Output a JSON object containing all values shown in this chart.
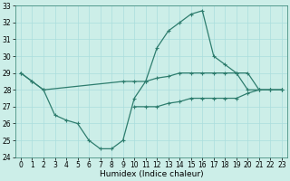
{
  "x": [
    0,
    1,
    2,
    3,
    4,
    5,
    6,
    7,
    8,
    9,
    10,
    11,
    12,
    13,
    14,
    15,
    16,
    17,
    18,
    19,
    20,
    21,
    22,
    23
  ],
  "line1_x": [
    0,
    1,
    2,
    9,
    10,
    11,
    12,
    13,
    14,
    15,
    16,
    17,
    18,
    19,
    20,
    21,
    22,
    23
  ],
  "line1_y": [
    29.0,
    28.5,
    28.0,
    28.5,
    28.5,
    28.5,
    28.7,
    28.8,
    29.0,
    29.0,
    29.0,
    29.0,
    29.0,
    29.0,
    28.0,
    28.0,
    28.0,
    28.0
  ],
  "line2_x": [
    0,
    1,
    2,
    3,
    4,
    5,
    6,
    7,
    8,
    9,
    10,
    11,
    12,
    13,
    14,
    15,
    16,
    17,
    18,
    19,
    20,
    21,
    22,
    23
  ],
  "line2_y": [
    29.0,
    28.5,
    28.0,
    26.5,
    26.2,
    26.0,
    25.0,
    24.5,
    24.5,
    25.0,
    27.5,
    28.5,
    30.5,
    31.5,
    32.0,
    32.5,
    32.7,
    30.0,
    29.5,
    29.0,
    29.0,
    28.0,
    28.0,
    28.0
  ],
  "line3_x": [
    10,
    11,
    12,
    13,
    14,
    15,
    16,
    17,
    18,
    19,
    20,
    21,
    22,
    23
  ],
  "line3_y": [
    27.0,
    27.0,
    27.0,
    27.2,
    27.3,
    27.5,
    27.5,
    27.5,
    27.5,
    27.5,
    27.8,
    28.0,
    28.0,
    28.0
  ],
  "color": "#2e7d6e",
  "bg_color": "#cceee8",
  "grid_color": "#aadddd",
  "xlabel": "Humidex (Indice chaleur)",
  "ylim": [
    24,
    33
  ],
  "xlim": [
    -0.5,
    23.5
  ],
  "yticks": [
    24,
    25,
    26,
    27,
    28,
    29,
    30,
    31,
    32,
    33
  ],
  "xticks": [
    0,
    1,
    2,
    3,
    4,
    5,
    6,
    7,
    8,
    9,
    10,
    11,
    12,
    13,
    14,
    15,
    16,
    17,
    18,
    19,
    20,
    21,
    22,
    23
  ],
  "axis_fontsize": 6.5,
  "tick_fontsize": 5.5,
  "linewidth": 0.9,
  "markersize": 2.5
}
